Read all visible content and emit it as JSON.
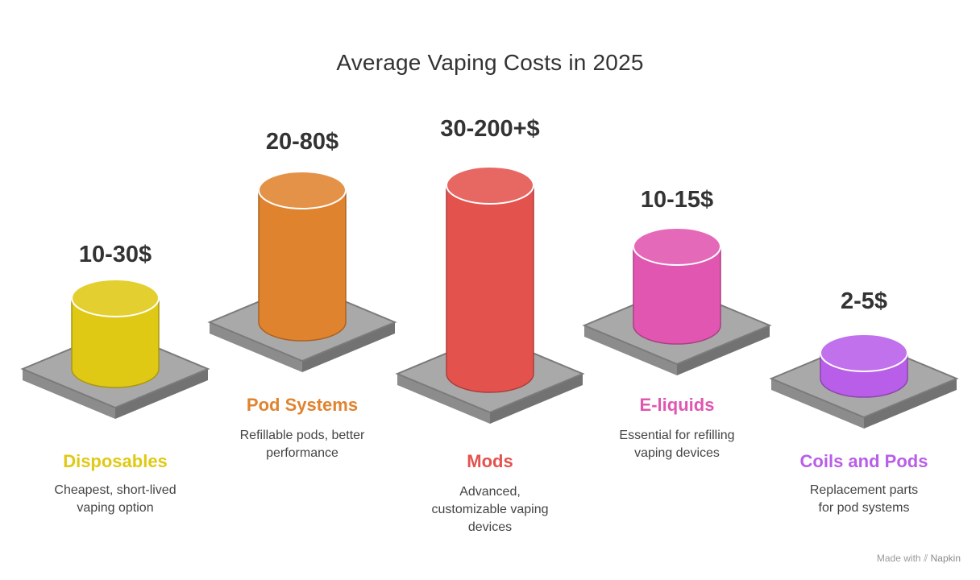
{
  "title": "Average Vaping Costs in 2025",
  "items": [
    {
      "label": "Disposables",
      "price": "10-30$",
      "description": [
        "Cheapest, short-lived",
        "vaping option"
      ],
      "color": "#e0c914",
      "price_value_range": [
        10,
        30
      ]
    },
    {
      "label": "Pod Systems",
      "price": "20-80$",
      "description": [
        "Refillable pods, better",
        "performance"
      ],
      "color": "#e0832f",
      "price_value_range": [
        20,
        80
      ]
    },
    {
      "label": "Mods",
      "price": "30-200+$",
      "description": [
        "Advanced,",
        "customizable vaping",
        "devices"
      ],
      "color": "#e4524e",
      "price_value_range": [
        30,
        200
      ]
    },
    {
      "label": "E-liquids",
      "price": "10-15$",
      "description": [
        "Essential for refilling",
        "vaping devices"
      ],
      "color": "#e056b0",
      "price_value_range": [
        10,
        15
      ]
    },
    {
      "label": "Coils and Pods",
      "price": "2-5$",
      "description": [
        "Replacement parts",
        "for pod systems"
      ],
      "color": "#b95ee8",
      "price_value_range": [
        2,
        5
      ]
    }
  ],
  "watermark": {
    "prefix": "Made with",
    "brand": "Napkin",
    "icon": "napkin-logo-icon"
  }
}
